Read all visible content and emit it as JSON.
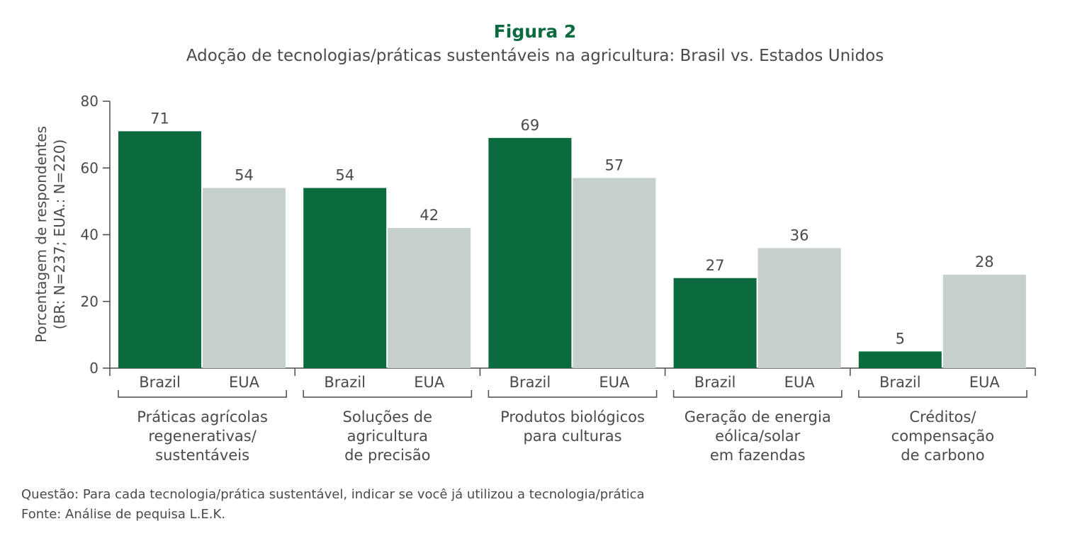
{
  "header": {
    "figure_label": "Figura 2",
    "title": "Adoção de tecnologias/práticas sustentáveis na agricultura: Brasil vs. Estados Unidos"
  },
  "chart_data": {
    "type": "bar",
    "ylabel_lines": [
      "Porcentagem de respondentes",
      "(BR: N=237; EUA.: N=220)"
    ],
    "ylim": [
      0,
      80
    ],
    "yticks": [
      0,
      20,
      40,
      60,
      80
    ],
    "series_labels": [
      "Brazil",
      "EUA"
    ],
    "categories": [
      {
        "label_lines": [
          "Práticas agrícolas",
          "regenerativas/",
          "sustentáveis"
        ],
        "values": [
          71,
          54
        ]
      },
      {
        "label_lines": [
          "Soluções de",
          "agricultura",
          "de precisão"
        ],
        "values": [
          54,
          42
        ]
      },
      {
        "label_lines": [
          "Produtos biológicos",
          "para culturas"
        ],
        "values": [
          69,
          57
        ]
      },
      {
        "label_lines": [
          "Geração de energia",
          "eólica/solar",
          "em fazendas"
        ],
        "values": [
          27,
          36
        ]
      },
      {
        "label_lines": [
          "Créditos/",
          "compensação",
          "de carbono"
        ],
        "values": [
          5,
          28
        ]
      }
    ],
    "colors": {
      "brazil": "#0b6b3f",
      "eua": "#c5cfcb",
      "axis": "#4a4a4a"
    },
    "grid": false,
    "legend": "none"
  },
  "footer": {
    "question": "Questão: Para cada tecnologia/prática sustentável, indicar se você já utilizou a tecnologia/prática",
    "source": "Fonte: Análise de pequisa L.E.K."
  }
}
